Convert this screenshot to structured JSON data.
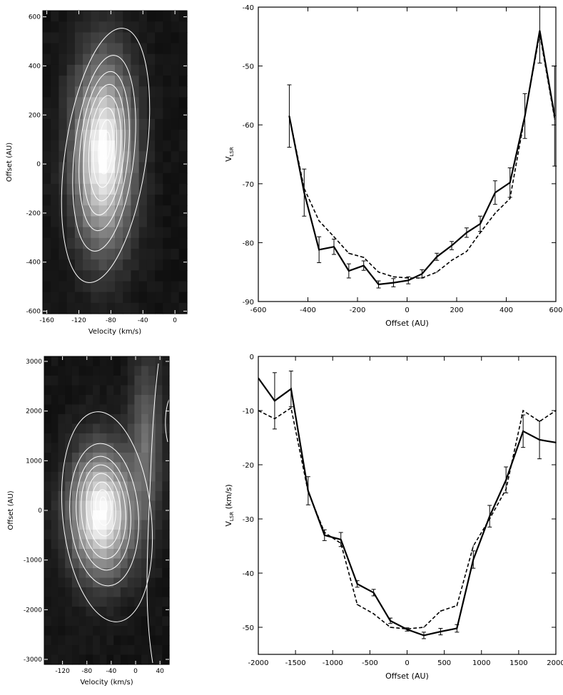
{
  "chart_data": [
    {
      "type": "heatmap",
      "panel": "top-left",
      "xlabel": "Velocity (km/s)",
      "ylabel": "Offset (AU)",
      "xlim": [
        -165,
        15
      ],
      "ylim": [
        -610,
        625
      ],
      "xticks": [
        -160,
        -120,
        -80,
        -40,
        0
      ],
      "yticks": [
        -600,
        -400,
        -200,
        0,
        200,
        400,
        600
      ],
      "colormap": "grayscale",
      "contours": {
        "color": "#ffffff",
        "levels": 9
      },
      "peak": {
        "velocity": -90,
        "offset": 0
      },
      "grid": false
    },
    {
      "type": "line",
      "panel": "top-right",
      "xlabel": "Offset (AU)",
      "ylabel": "V",
      "ylabel_sub": "LSR",
      "xlim": [
        -600,
        600
      ],
      "ylim": [
        -90,
        -40
      ],
      "xticks": [
        -600,
        -400,
        -200,
        0,
        200,
        400,
        600
      ],
      "yticks": [
        -90,
        -80,
        -70,
        -60,
        -50,
        -40
      ],
      "grid": false,
      "series": [
        {
          "style": "solid",
          "x": [
            -475,
            -415,
            -355,
            -295,
            -235,
            -175,
            -115,
            -55,
            5,
            60,
            120,
            180,
            240,
            295,
            355,
            415,
            475,
            535,
            595
          ],
          "y": [
            -58.5,
            -71.5,
            -81.2,
            -80.7,
            -84.8,
            -83.9,
            -87.1,
            -86.8,
            -86.4,
            -85.3,
            -82.4,
            -80.5,
            -78.3,
            -76.8,
            -71.5,
            -69.8,
            -58.5,
            -44.0,
            -58.5
          ],
          "err": [
            5.3,
            4.0,
            2.2,
            1.3,
            1.2,
            0.8,
            0.6,
            0.7,
            0.6,
            0.7,
            0.6,
            0.7,
            0.8,
            1.3,
            2.0,
            2.5,
            3.8,
            5.5,
            8.5
          ]
        },
        {
          "style": "dashed",
          "x": [
            -475,
            -415,
            -355,
            -295,
            -235,
            -175,
            -115,
            -55,
            5,
            60,
            120,
            180,
            240,
            295,
            355,
            415,
            475,
            535,
            595
          ],
          "y": [
            -58.5,
            -70.8,
            -76.3,
            -79.0,
            -81.8,
            -82.5,
            -85.0,
            -85.8,
            -86.0,
            -86.0,
            -85.0,
            -83.0,
            -81.5,
            -78.3,
            -75.0,
            -72.5,
            -58.5,
            -44.5,
            -59.0
          ]
        }
      ]
    },
    {
      "type": "heatmap",
      "panel": "bottom-left",
      "xlabel": "Velocity (km/s)",
      "ylabel": "Offset (AU)",
      "xlim": [
        -150,
        55
      ],
      "ylim": [
        -3100,
        3100
      ],
      "xticks": [
        -120,
        -80,
        -40,
        0,
        40
      ],
      "yticks": [
        -3000,
        -2000,
        -1000,
        0,
        1000,
        2000,
        3000
      ],
      "colormap": "grayscale",
      "contours": {
        "color": "#ffffff",
        "levels": 9
      },
      "peak": {
        "velocity": -55,
        "offset": 100
      },
      "grid": false
    },
    {
      "type": "line",
      "panel": "bottom-right",
      "xlabel": "Offset (AU)",
      "ylabel": "V",
      "ylabel_sub": "LSR",
      "ylabel_unit": "(km/s)",
      "xlim": [
        -2000,
        2000
      ],
      "ylim": [
        -55,
        0
      ],
      "xticks": [
        -2000,
        -1500,
        -1000,
        -500,
        0,
        500,
        1000,
        1500,
        2000
      ],
      "yticks": [
        -50,
        -40,
        -30,
        -20,
        -10,
        0
      ],
      "grid": false,
      "series": [
        {
          "style": "solid",
          "x": [
            -2000,
            -1780,
            -1560,
            -1330,
            -1110,
            -890,
            -670,
            -450,
            -225,
            0,
            225,
            450,
            670,
            890,
            1110,
            1330,
            1560,
            1780,
            2000
          ],
          "y": [
            -4,
            -8.2,
            -6.0,
            -24.8,
            -33.0,
            -33.8,
            -42.0,
            -43.6,
            -48.8,
            -50.4,
            -51.5,
            -50.8,
            -50.2,
            -37.5,
            -29.5,
            -22.8,
            -13.8,
            -15.4,
            -15.9
          ],
          "err": [
            0,
            5.2,
            3.3,
            2.6,
            1.0,
            1.3,
            0.6,
            0.6,
            0.5,
            0.3,
            0.6,
            0.6,
            0.7,
            1.6,
            2.0,
            2.4,
            3.0,
            3.5,
            0
          ]
        },
        {
          "style": "dashed",
          "x": [
            -2000,
            -1780,
            -1560,
            -1330,
            -1110,
            -890,
            -670,
            -450,
            -225,
            0,
            225,
            450,
            670,
            890,
            1110,
            1330,
            1560,
            1780,
            2000
          ],
          "y": [
            -10.0,
            -11.5,
            -9.5,
            -25.0,
            -32.5,
            -34.5,
            -45.8,
            -47.5,
            -50.0,
            -50.3,
            -50.0,
            -47.0,
            -46.0,
            -35.0,
            -30.0,
            -24.5,
            -10.0,
            -12.0,
            -10.0
          ]
        }
      ]
    }
  ]
}
